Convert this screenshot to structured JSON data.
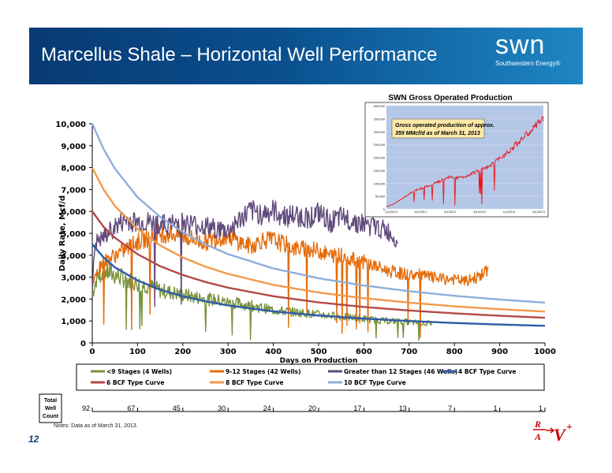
{
  "slide": {
    "title": "Marcellus Shale – Horizontal Well Performance",
    "logo_word": "swn",
    "logo_sub": "Southwestern Energy",
    "logo_reg": "®",
    "notes": "Notes:   Data as of March 31, 2013.",
    "page_number": "12",
    "rav_mark": "R/A → V+"
  },
  "chart_data": [
    {
      "type": "line",
      "ylabel": "Daily Rate, Mcf/d",
      "xlabel": "Days on Production",
      "xlim": [
        0,
        1000
      ],
      "ylim": [
        0,
        10000
      ],
      "xticks": [
        0,
        100,
        200,
        300,
        400,
        500,
        600,
        700,
        800,
        900,
        1000
      ],
      "yticks": [
        0,
        1000,
        2000,
        3000,
        4000,
        5000,
        6000,
        7000,
        8000,
        9000,
        10000
      ],
      "xtick_labels": [
        "0",
        "100",
        "200",
        "300",
        "400",
        "500",
        "600",
        "700",
        "800",
        "900",
        "1000"
      ],
      "ytick_labels": [
        "0",
        "1,000",
        "2,000",
        "3,000",
        "4,000",
        "5,000",
        "6,000",
        "7,000",
        "8,000",
        "9,000",
        "10,000"
      ],
      "grid": false,
      "legend_position": "bottom",
      "series": [
        {
          "name": "<9 Stages (4 Wells)",
          "color": "#77933c",
          "x": [
            0,
            10,
            25,
            50,
            75,
            100,
            125,
            150,
            175,
            200,
            225,
            250,
            275,
            300,
            325,
            350,
            375,
            400,
            425,
            450,
            475,
            500,
            525,
            550,
            575,
            600,
            625,
            650,
            675,
            700,
            725,
            750
          ],
          "y": [
            2200,
            3000,
            3300,
            3100,
            2900,
            2700,
            2600,
            2400,
            2300,
            2200,
            2100,
            2000,
            1950,
            1850,
            1800,
            1700,
            1600,
            1500,
            1450,
            1400,
            1350,
            1300,
            1250,
            1200,
            1150,
            1100,
            1050,
            1000,
            1000,
            950,
            900,
            900
          ]
        },
        {
          "name": "9-12 Stages (42 Wells)",
          "color": "#e46c0a",
          "x": [
            0,
            10,
            25,
            50,
            75,
            100,
            125,
            150,
            175,
            200,
            225,
            250,
            275,
            300,
            325,
            350,
            375,
            400,
            425,
            450,
            475,
            500,
            525,
            550,
            575,
            600,
            625,
            650,
            675,
            700,
            725,
            750,
            775,
            800,
            825,
            850,
            875
          ],
          "y": [
            2500,
            3300,
            3700,
            4000,
            4300,
            4600,
            4800,
            5000,
            5000,
            4900,
            4700,
            4600,
            4800,
            4900,
            4600,
            4400,
            4700,
            4700,
            4500,
            4300,
            4300,
            4200,
            4000,
            4000,
            3800,
            3700,
            3500,
            3300,
            3200,
            3100,
            3100,
            3000,
            2900,
            2900,
            2800,
            3000,
            3300
          ]
        },
        {
          "name": "Greater than 12 Stages (46 Wells)",
          "color": "#604a7b",
          "x": [
            0,
            5,
            25,
            50,
            75,
            100,
            125,
            150,
            175,
            200,
            225,
            250,
            275,
            300,
            325,
            350,
            375,
            400,
            425,
            450,
            475,
            500,
            525,
            550,
            575,
            600,
            625,
            650,
            675
          ],
          "y": [
            2500,
            4500,
            4800,
            5300,
            5600,
            5500,
            5500,
            5400,
            5400,
            5500,
            5400,
            5300,
            5200,
            5100,
            5600,
            6000,
            5900,
            6000,
            5800,
            5800,
            5700,
            5900,
            5500,
            5700,
            5600,
            5400,
            5300,
            5100,
            4700
          ]
        },
        {
          "name": "4 BCF Type Curve",
          "color": "#2e5aa8",
          "x": [
            0,
            25,
            50,
            100,
            150,
            200,
            250,
            300,
            400,
            500,
            600,
            700,
            800,
            900,
            1000
          ],
          "y": [
            4500,
            3900,
            3450,
            2850,
            2430,
            2130,
            1900,
            1710,
            1440,
            1250,
            1110,
            1000,
            910,
            840,
            780
          ]
        },
        {
          "name": "6 BCF Type Curve",
          "color": "#b24a48",
          "x": [
            0,
            25,
            50,
            100,
            150,
            200,
            250,
            300,
            400,
            500,
            600,
            700,
            800,
            900,
            1000
          ],
          "y": [
            6000,
            5300,
            4800,
            4050,
            3500,
            3100,
            2780,
            2520,
            2130,
            1850,
            1640,
            1480,
            1350,
            1240,
            1150
          ]
        },
        {
          "name": "8 BCF Type Curve",
          "color": "#f19a4b",
          "x": [
            0,
            25,
            50,
            100,
            150,
            200,
            250,
            300,
            400,
            500,
            600,
            700,
            800,
            900,
            1000
          ],
          "y": [
            8000,
            7000,
            6250,
            5200,
            4450,
            3900,
            3480,
            3150,
            2650,
            2300,
            2040,
            1840,
            1670,
            1540,
            1430
          ]
        },
        {
          "name": "10 BCF Type Curve",
          "color": "#8eaedb",
          "x": [
            0,
            25,
            50,
            100,
            150,
            200,
            250,
            300,
            400,
            500,
            600,
            700,
            800,
            900,
            1000
          ],
          "y": [
            10000,
            8850,
            7950,
            6650,
            5750,
            5050,
            4500,
            4050,
            3400,
            2950,
            2620,
            2360,
            2150,
            1980,
            1840
          ]
        }
      ]
    },
    {
      "type": "line",
      "title": "SWN Gross Operated Production",
      "annotation": "Gross operated production of approx. 359 MMcf/d as of March 31, 2013",
      "ylim": [
        0,
        400000
      ],
      "yticks": [
        0,
        50000,
        100000,
        150000,
        200000,
        250000,
        300000,
        350000,
        400000
      ],
      "ytick_labels": [
        "0",
        "50,000",
        "100,000",
        "150,000",
        "200,000",
        "250,000",
        "300,000",
        "350,000",
        "400,000"
      ],
      "xtick_labels": [
        "1/1/2010",
        "4/1/2011",
        "1/1/2011",
        "4/1/2012",
        "1/1/2012",
        "4/1/2013"
      ],
      "color": "#e8131b",
      "series": [
        {
          "x": [
            0,
            0.05,
            0.1,
            0.15,
            0.2,
            0.25,
            0.3,
            0.35,
            0.4,
            0.45,
            0.5,
            0.55,
            0.6,
            0.65,
            0.7,
            0.75,
            0.8,
            0.85,
            0.9,
            0.95,
            1.0
          ],
          "y": [
            8000,
            20000,
            40000,
            60000,
            75000,
            85000,
            95000,
            110000,
            125000,
            120000,
            125000,
            140000,
            150000,
            160000,
            185000,
            210000,
            235000,
            265000,
            290000,
            320000,
            350000
          ]
        }
      ]
    }
  ],
  "well_count": {
    "header": [
      "Total",
      "Well",
      "Count"
    ],
    "labels": [
      "92",
      "67",
      "45",
      "30",
      "24",
      "20",
      "17",
      "13",
      "7",
      "1",
      "1"
    ]
  }
}
